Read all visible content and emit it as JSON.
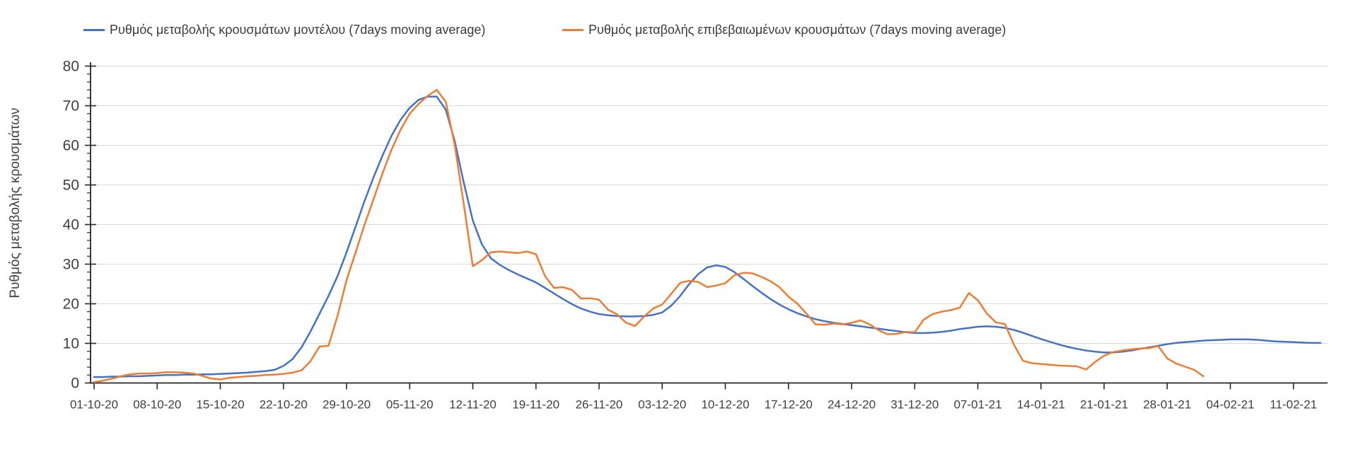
{
  "chart_data": {
    "type": "line",
    "title": "",
    "ylabel": "Ρυθμός μεταβολής κρουσμάτων",
    "xlabel": "",
    "ylim": [
      0,
      80
    ],
    "yticks": [
      0,
      10,
      20,
      30,
      40,
      50,
      60,
      70,
      80
    ],
    "y_minor_tick_step": 2,
    "grid": "horizontal-light-gray",
    "legend_position": "top",
    "x_is_daily_from": "01-10-20",
    "x_tick_every_days": 7,
    "x_tick_labels": [
      "01-10-20",
      "08-10-20",
      "15-10-20",
      "22-10-20",
      "29-10-20",
      "05-11-20",
      "12-11-20",
      "19-11-20",
      "26-11-20",
      "03-12-20",
      "10-12-20",
      "17-12-20",
      "24-12-20",
      "31-12-20",
      "07-01-21",
      "14-01-21",
      "21-01-21",
      "28-01-21",
      "04-02-21",
      "11-02-21"
    ],
    "series": [
      {
        "name": "Ρυθμός μεταβολής κρουσμάτων μοντέλου (7days moving average)",
        "color": "#4472C4",
        "values": [
          1.5,
          1.5,
          1.6,
          1.6,
          1.7,
          1.7,
          1.8,
          1.9,
          2.0,
          2.0,
          2.1,
          2.1,
          2.2,
          2.2,
          2.3,
          2.4,
          2.5,
          2.6,
          2.8,
          3.0,
          3.3,
          4.3,
          6.0,
          9.0,
          13.0,
          17.5,
          22.0,
          27.0,
          33.0,
          39.5,
          46.0,
          52.0,
          57.5,
          62.5,
          66.5,
          69.5,
          71.5,
          72.3,
          72.3,
          69.0,
          61.0,
          50.5,
          41.0,
          35.0,
          31.5,
          29.8,
          28.5,
          27.4,
          26.4,
          25.4,
          24.0,
          22.6,
          21.2,
          19.9,
          18.8,
          18.0,
          17.4,
          17.1,
          16.9,
          16.8,
          16.8,
          16.9,
          17.2,
          17.8,
          19.5,
          22.0,
          25.0,
          27.5,
          29.2,
          29.7,
          29.3,
          28.0,
          26.3,
          24.5,
          22.8,
          21.2,
          19.8,
          18.6,
          17.6,
          16.8,
          16.1,
          15.6,
          15.2,
          14.9,
          14.6,
          14.3,
          14.0,
          13.7,
          13.4,
          13.1,
          12.8,
          12.6,
          12.6,
          12.7,
          12.9,
          13.2,
          13.6,
          13.9,
          14.2,
          14.3,
          14.2,
          13.9,
          13.4,
          12.7,
          11.9,
          11.1,
          10.4,
          9.7,
          9.1,
          8.6,
          8.2,
          7.9,
          7.7,
          7.7,
          7.9,
          8.2,
          8.6,
          9.0,
          9.4,
          9.8,
          10.1,
          10.3,
          10.5,
          10.7,
          10.8,
          10.9,
          11.0,
          11.0,
          11.0,
          10.9,
          10.7,
          10.5,
          10.4,
          10.3,
          10.2,
          10.1,
          10.1
        ]
      },
      {
        "name": "Ρυθμός μεταβολής επιβεβαιωμένων κρουσμάτων (7days moving average)",
        "color": "#ED7D31",
        "values": [
          0.2,
          0.6,
          1.1,
          1.7,
          2.2,
          2.4,
          2.4,
          2.5,
          2.7,
          2.7,
          2.6,
          2.4,
          1.8,
          1.1,
          0.9,
          1.3,
          1.5,
          1.7,
          1.8,
          2.0,
          2.1,
          2.3,
          2.6,
          3.2,
          5.5,
          9.2,
          9.4,
          17.0,
          26.0,
          33.0,
          40.0,
          46.5,
          53.0,
          59.0,
          64.0,
          68.0,
          70.5,
          72.5,
          74.0,
          71.0,
          60.0,
          45.0,
          29.5,
          31.0,
          33.0,
          33.2,
          33.0,
          32.8,
          33.2,
          32.5,
          27.0,
          24.0,
          24.2,
          23.5,
          21.3,
          21.4,
          21.0,
          18.5,
          17.3,
          15.2,
          14.4,
          16.8,
          18.8,
          19.8,
          22.5,
          25.3,
          25.8,
          25.5,
          24.2,
          24.6,
          25.2,
          27.2,
          27.8,
          27.7,
          26.8,
          25.7,
          24.2,
          21.8,
          20.0,
          17.5,
          14.8,
          14.7,
          15.0,
          14.8,
          15.2,
          15.8,
          14.8,
          13.3,
          12.3,
          12.4,
          12.9,
          12.8,
          16.0,
          17.4,
          18.0,
          18.4,
          19.0,
          22.7,
          20.9,
          17.5,
          15.3,
          14.9,
          9.7,
          5.6,
          5.0,
          4.8,
          4.6,
          4.4,
          4.3,
          4.2,
          3.4,
          5.3,
          6.9,
          7.8,
          8.2,
          8.5,
          8.7,
          8.8,
          9.3,
          6.2,
          4.9,
          4.1,
          3.3,
          1.7,
          null,
          null,
          null,
          null,
          null,
          null,
          null,
          null,
          null,
          null,
          null,
          null,
          null
        ]
      }
    ]
  }
}
